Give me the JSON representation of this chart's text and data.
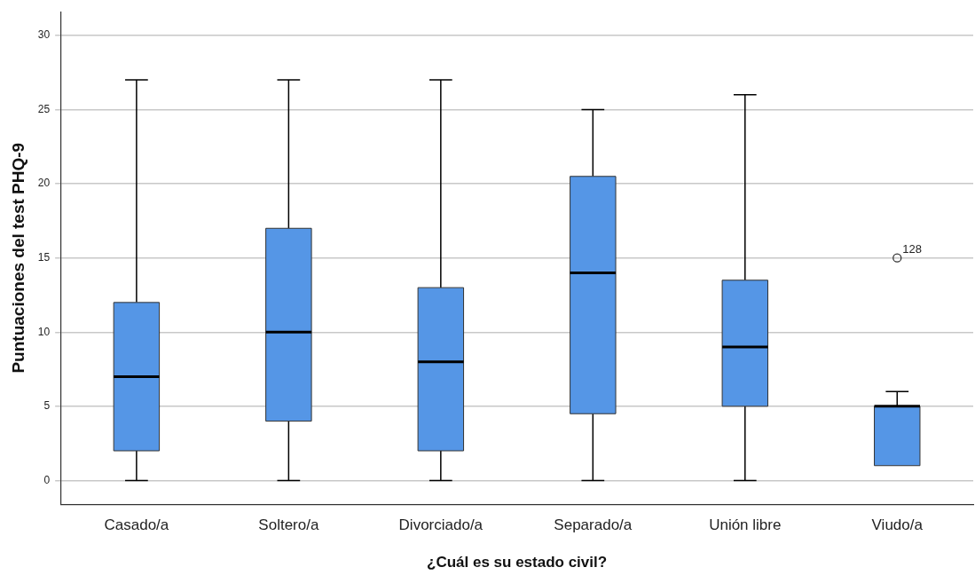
{
  "chart_data": {
    "type": "box",
    "xlabel": "¿Cuál es su estado civil?",
    "ylabel": "Puntuaciones del test PHQ-9",
    "categories": [
      "Casado/a",
      "Soltero/a",
      "Divorciado/a",
      "Separado/a",
      "Unión libre",
      "Viudo/a"
    ],
    "color": "#5596e6",
    "boxes": [
      {
        "low": 0,
        "q1": 2,
        "median": 7,
        "q3": 12,
        "high": 27
      },
      {
        "low": 0,
        "q1": 4,
        "median": 10,
        "q3": 17,
        "high": 27
      },
      {
        "low": 0,
        "q1": 2,
        "median": 8,
        "q3": 13,
        "high": 27
      },
      {
        "low": 0,
        "q1": 4.5,
        "median": 14,
        "q3": 20.5,
        "high": 25
      },
      {
        "low": 0,
        "q1": 5,
        "median": 9,
        "q3": 13.5,
        "high": 26
      },
      {
        "low": 1,
        "q1": 1,
        "median": 5,
        "q3": 5,
        "high": 6,
        "outliers": [
          15
        ]
      }
    ],
    "annotations": [
      "128"
    ],
    "ylim": [
      -1.6,
      31.6
    ],
    "yticks": [
      0,
      5,
      10,
      15,
      20,
      25,
      30
    ],
    "grid": "y",
    "legend": false
  }
}
